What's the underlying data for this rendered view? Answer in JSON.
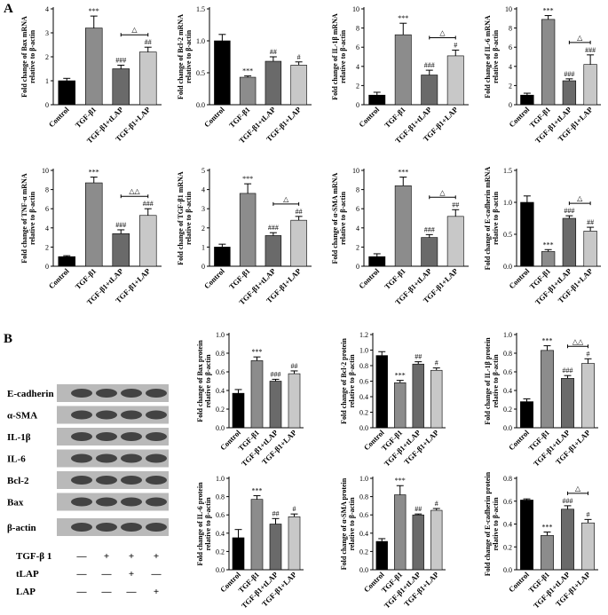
{
  "panels": [
    "A",
    "B"
  ],
  "chart_data": [
    {
      "type": "bar",
      "ylabel": [
        "Fold change of Bax mRNA",
        "relative to β-actin"
      ],
      "categories": [
        "Control",
        "TGF-β1",
        "TGF-β1+tLAP",
        "TGF-β1+LAP"
      ],
      "values": [
        1.0,
        3.2,
        1.5,
        2.2
      ],
      "errors": [
        0.1,
        0.5,
        0.15,
        0.2
      ],
      "colors": [
        "#000000",
        "#8c8c8c",
        "#6a6a6a",
        "#c8c8c8"
      ],
      "annotations": [
        null,
        "***",
        "###",
        "##"
      ],
      "bracket": "△",
      "ylim": [
        0,
        4
      ],
      "yticks": [
        0,
        1,
        2,
        3,
        4
      ]
    },
    {
      "type": "bar",
      "ylabel": [
        "Fold change of Bcl-2 mRNA",
        "relative to β-actin"
      ],
      "categories": [
        "Control",
        "TGF-β1",
        "TGF-β1+tLAP",
        "TGF-β1+LAP"
      ],
      "values": [
        1.0,
        0.43,
        0.68,
        0.62
      ],
      "errors": [
        0.1,
        0.02,
        0.07,
        0.05
      ],
      "colors": [
        "#000000",
        "#8c8c8c",
        "#6a6a6a",
        "#c8c8c8"
      ],
      "annotations": [
        null,
        "***",
        "##",
        "#"
      ],
      "ylim": [
        0,
        1.5
      ],
      "yticks": [
        {
          "value": 0,
          "label": "0.0"
        },
        0.5,
        {
          "value": 1,
          "label": "1.0"
        },
        1.5
      ]
    },
    {
      "type": "bar",
      "ylabel": [
        "Fold change of IL-1β mRNA",
        "relative to β-actin"
      ],
      "categories": [
        "Control",
        "TGF-β1",
        "TGF-β1+tLAP",
        "TGF-β1+LAP"
      ],
      "values": [
        1.0,
        7.3,
        3.1,
        5.1
      ],
      "errors": [
        0.3,
        1.2,
        0.5,
        0.6
      ],
      "colors": [
        "#000000",
        "#8c8c8c",
        "#6a6a6a",
        "#c8c8c8"
      ],
      "annotations": [
        null,
        "***",
        "###",
        "#"
      ],
      "bracket": "△",
      "ylim": [
        0,
        10
      ],
      "yticks": [
        0,
        2,
        4,
        6,
        8,
        10
      ]
    },
    {
      "type": "bar",
      "ylabel": [
        "Fold change of IL-6 mRNA",
        "relative to β-actin"
      ],
      "categories": [
        "Control",
        "TGF-β1",
        "TGF-β1+tLAP",
        "TGF-β1+LAP"
      ],
      "values": [
        1.0,
        8.9,
        2.5,
        4.2
      ],
      "errors": [
        0.2,
        0.4,
        0.2,
        1.0
      ],
      "colors": [
        "#000000",
        "#8c8c8c",
        "#6a6a6a",
        "#c8c8c8"
      ],
      "annotations": [
        null,
        "***",
        "###",
        "###"
      ],
      "bracket": "△",
      "ylim": [
        0,
        10
      ],
      "yticks": [
        0,
        2,
        4,
        6,
        8,
        10
      ]
    },
    {
      "type": "bar",
      "ylabel": [
        "Fold change of TNF-α mRNA",
        "relative to β-actin"
      ],
      "categories": [
        "Control",
        "TGF-β1",
        "TGF-β1+tLAP",
        "TGF-β1+LAP"
      ],
      "values": [
        1.0,
        8.7,
        3.4,
        5.3
      ],
      "errors": [
        0.1,
        0.6,
        0.4,
        0.7
      ],
      "colors": [
        "#000000",
        "#8c8c8c",
        "#6a6a6a",
        "#c8c8c8"
      ],
      "annotations": [
        null,
        "***",
        "###",
        "###"
      ],
      "bracket": "△△",
      "ylim": [
        0,
        10
      ],
      "yticks": [
        0,
        2,
        4,
        6,
        8,
        10
      ]
    },
    {
      "type": "bar",
      "ylabel": [
        "Fold change of TGF-β1 mRNA",
        "relative to β-actin"
      ],
      "categories": [
        "Control",
        "TGF-β1",
        "TGF-β1+tLAP",
        "TGF-β1+LAP"
      ],
      "values": [
        1.0,
        3.8,
        1.6,
        2.4
      ],
      "errors": [
        0.15,
        0.5,
        0.15,
        0.2
      ],
      "colors": [
        "#000000",
        "#8c8c8c",
        "#6a6a6a",
        "#c8c8c8"
      ],
      "annotations": [
        null,
        "***",
        "###",
        "##"
      ],
      "bracket": "△",
      "ylim": [
        0,
        5
      ],
      "yticks": [
        0,
        1,
        2,
        3,
        4,
        5
      ]
    },
    {
      "type": "bar",
      "ylabel": [
        "Fold change of α-SMA mRNA",
        "relative to β-actin"
      ],
      "categories": [
        "Control",
        "TGF-β1",
        "TGF-β1+tLAP",
        "TGF-β1+LAP"
      ],
      "values": [
        1.0,
        8.4,
        3.0,
        5.2
      ],
      "errors": [
        0.3,
        0.9,
        0.3,
        0.7
      ],
      "colors": [
        "#000000",
        "#8c8c8c",
        "#6a6a6a",
        "#c8c8c8"
      ],
      "annotations": [
        null,
        "***",
        "###",
        "##"
      ],
      "bracket": "△",
      "ylim": [
        0,
        10
      ],
      "yticks": [
        0,
        2,
        4,
        6,
        8,
        10
      ]
    },
    {
      "type": "bar",
      "ylabel": [
        "Fold change of E-cadherin mRNA",
        "relative to β-actin"
      ],
      "categories": [
        "Control",
        "TGF-β1",
        "TGF-β1+tLAP",
        "TGF-β1+LAP"
      ],
      "values": [
        1.0,
        0.23,
        0.75,
        0.55
      ],
      "errors": [
        0.1,
        0.03,
        0.04,
        0.06
      ],
      "colors": [
        "#000000",
        "#8c8c8c",
        "#6a6a6a",
        "#c8c8c8"
      ],
      "annotations": [
        null,
        "***",
        "###",
        "##"
      ],
      "bracket": "△",
      "ylim": [
        0,
        1.5
      ],
      "yticks": [
        {
          "value": 0,
          "label": "0.0"
        },
        0.5,
        {
          "value": 1,
          "label": "1.0"
        },
        1.5
      ]
    },
    {
      "type": "bar",
      "ylabel": [
        "Fold change of Bax protein",
        "relative to β-actin"
      ],
      "categories": [
        "Control",
        "TGF-β1",
        "TGF-β1+tLAP",
        "TGF-β1+LAP"
      ],
      "values": [
        0.37,
        0.72,
        0.5,
        0.58
      ],
      "errors": [
        0.04,
        0.04,
        0.02,
        0.03
      ],
      "colors": [
        "#000000",
        "#8c8c8c",
        "#6a6a6a",
        "#c8c8c8"
      ],
      "annotations": [
        null,
        "***",
        "###",
        "##"
      ],
      "ylim": [
        0,
        1
      ],
      "yticks": [
        {
          "value": 0,
          "label": "0.0"
        },
        0.2,
        0.4,
        0.6,
        0.8,
        {
          "value": 1,
          "label": "1.0"
        }
      ]
    },
    {
      "type": "bar",
      "ylabel": [
        "Fold change of Bcl-2 protein",
        "relative to β-actin"
      ],
      "categories": [
        "Control",
        "TGF-β1",
        "TGF-β1+tLAP",
        "TGF-β1+LAP"
      ],
      "values": [
        0.93,
        0.58,
        0.82,
        0.74
      ],
      "errors": [
        0.05,
        0.03,
        0.03,
        0.03
      ],
      "colors": [
        "#000000",
        "#8c8c8c",
        "#6a6a6a",
        "#c8c8c8"
      ],
      "annotations": [
        null,
        "***",
        "##",
        "#"
      ],
      "ylim": [
        0,
        1.2
      ],
      "yticks": [
        {
          "value": 0,
          "label": "0.0"
        },
        0.2,
        0.4,
        0.6,
        0.8,
        {
          "value": 1,
          "label": "1.0"
        },
        1.2
      ]
    },
    {
      "type": "bar",
      "ylabel": [
        "Fold change of IL-1β protein",
        "relative to β-actin"
      ],
      "categories": [
        "Control",
        "TGF-β1",
        "TGF-β1+tLAP",
        "TGF-β1+LAP"
      ],
      "values": [
        0.28,
        0.83,
        0.53,
        0.69
      ],
      "errors": [
        0.03,
        0.05,
        0.03,
        0.05
      ],
      "colors": [
        "#000000",
        "#8c8c8c",
        "#6a6a6a",
        "#c8c8c8"
      ],
      "annotations": [
        null,
        "***",
        "###",
        "#"
      ],
      "bracket": "△△",
      "ylim": [
        0,
        1
      ],
      "yticks": [
        {
          "value": 0,
          "label": "0.0"
        },
        0.2,
        0.4,
        0.6,
        0.8,
        {
          "value": 1,
          "label": "1.0"
        }
      ]
    },
    {
      "type": "bar",
      "ylabel": [
        "Fold change of IL-6 protein",
        "relative to β-actin"
      ],
      "categories": [
        "Control",
        "TGF-β1",
        "TGF-β1+tLAP",
        "TGF-β1+LAP"
      ],
      "values": [
        0.35,
        0.77,
        0.5,
        0.58
      ],
      "errors": [
        0.09,
        0.04,
        0.06,
        0.03
      ],
      "colors": [
        "#000000",
        "#8c8c8c",
        "#6a6a6a",
        "#c8c8c8"
      ],
      "annotations": [
        null,
        "***",
        "##",
        "#"
      ],
      "ylim": [
        0,
        1
      ],
      "yticks": [
        {
          "value": 0,
          "label": "0.0"
        },
        0.2,
        0.4,
        0.6,
        0.8,
        {
          "value": 1,
          "label": "1.0"
        }
      ]
    },
    {
      "type": "bar",
      "ylabel": [
        "Fold change of α-SMA protein",
        "relative to β-actin"
      ],
      "categories": [
        "Control",
        "TGF-β1",
        "TGF-β1+tLAP",
        "TGF-β1+LAP"
      ],
      "values": [
        0.31,
        0.82,
        0.6,
        0.65
      ],
      "errors": [
        0.03,
        0.1,
        0.01,
        0.02
      ],
      "colors": [
        "#000000",
        "#8c8c8c",
        "#6a6a6a",
        "#c8c8c8"
      ],
      "annotations": [
        null,
        "***",
        "##",
        "#"
      ],
      "ylim": [
        0,
        1
      ],
      "yticks": [
        {
          "value": 0,
          "label": "0.0"
        },
        0.2,
        0.4,
        0.6,
        0.8,
        {
          "value": 1,
          "label": "1.0"
        }
      ]
    },
    {
      "type": "bar",
      "ylabel": [
        "Fold change of E-cadherin protein",
        "relative to β-actin"
      ],
      "categories": [
        "Control",
        "TGF-β1",
        "TGF-β1+tLAP",
        "TGF-β1+LAP"
      ],
      "values": [
        0.61,
        0.3,
        0.53,
        0.41
      ],
      "errors": [
        0.01,
        0.03,
        0.03,
        0.03
      ],
      "colors": [
        "#000000",
        "#8c8c8c",
        "#6a6a6a",
        "#c8c8c8"
      ],
      "annotations": [
        null,
        "***",
        "###",
        "#"
      ],
      "bracket": "△",
      "ylim": [
        0,
        0.8
      ],
      "yticks": [
        {
          "value": 0,
          "label": "0.0"
        },
        0.2,
        0.4,
        0.6,
        0.8
      ]
    }
  ],
  "blot": {
    "proteins": [
      "E-cadherin",
      "α-SMA",
      "IL-1β",
      "IL-6",
      "Bcl-2",
      "Bax",
      "β-actin"
    ],
    "treatments": [
      {
        "name": "TGF-β 1",
        "signs": [
          "—",
          "+",
          "+",
          "+"
        ]
      },
      {
        "name": "tLAP",
        "signs": [
          "—",
          "—",
          "+",
          "—"
        ]
      },
      {
        "name": "LAP",
        "signs": [
          "—",
          "—",
          "—",
          "+"
        ]
      }
    ]
  }
}
